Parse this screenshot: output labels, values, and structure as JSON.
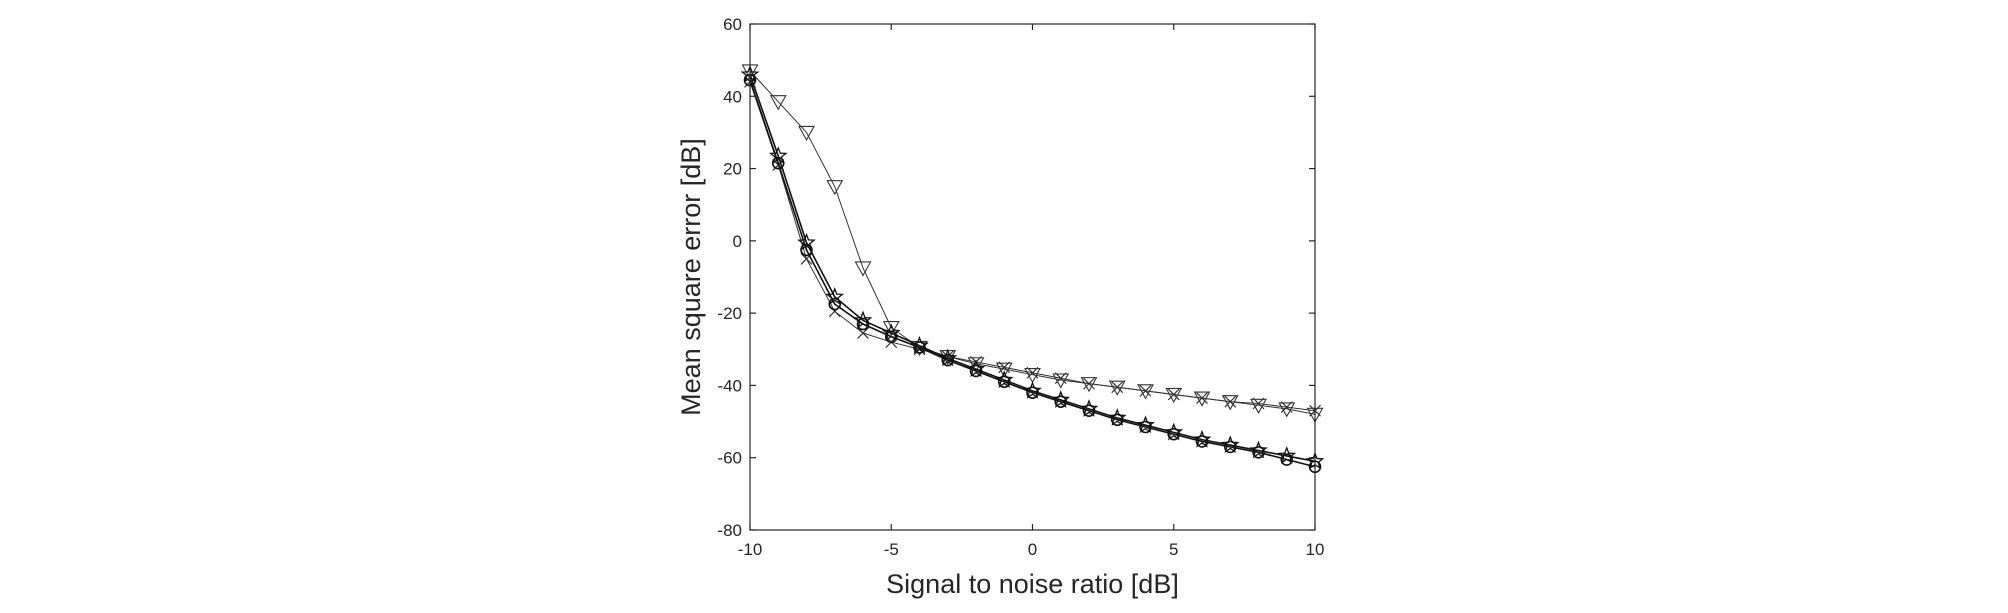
{
  "chart_data": {
    "type": "line",
    "title": "",
    "xlabel": "Signal to noise ratio [dB]",
    "ylabel": "Mean square error [dB]",
    "xlim": [
      -10,
      10
    ],
    "ylim": [
      -80,
      60
    ],
    "xticks": [
      -10,
      -5,
      0,
      5,
      10
    ],
    "yticks": [
      -80,
      -60,
      -40,
      -20,
      0,
      20,
      40,
      60
    ],
    "xtick_labels": [
      "-10",
      "-5",
      "0",
      "5",
      "10"
    ],
    "ytick_labels": [
      "-80",
      "-60",
      "-40",
      "-20",
      "0",
      "20",
      "40",
      "60"
    ],
    "grid": false,
    "x": [
      -10,
      -9,
      -8,
      -7,
      -6,
      -5,
      -4,
      -3,
      -2,
      -1,
      0,
      1,
      2,
      3,
      4,
      5,
      6,
      7,
      8,
      9,
      10
    ],
    "series": [
      {
        "name": "triangle-down",
        "marker": "triangle-down",
        "color": "#333333",
        "values": [
          47,
          38.5,
          30,
          15,
          -7.5,
          -24,
          -29.5,
          -32,
          -34,
          -35.5,
          -37,
          -38.5,
          -39.5,
          -40.5,
          -41.5,
          -42.5,
          -43.5,
          -44.5,
          -45.5,
          -46.5,
          -48
        ]
      },
      {
        "name": "x",
        "marker": "x",
        "color": "#333333",
        "values": [
          44,
          21,
          -5,
          -19.5,
          -25.5,
          -28,
          -30,
          -32,
          -33.5,
          -35,
          -36.5,
          -38,
          -39.5,
          -40.5,
          -41.5,
          -42.5,
          -43.5,
          -44.5,
          -45,
          -46,
          -47
        ]
      },
      {
        "name": "circle",
        "marker": "circle",
        "color": "#111111",
        "values": [
          44.5,
          21.5,
          -2.5,
          -17.5,
          -23,
          -26.5,
          -29.5,
          -33,
          -36,
          -39,
          -42,
          -44.5,
          -47,
          -49.5,
          -51.5,
          -53.5,
          -55.5,
          -57,
          -58.5,
          -60.5,
          -62.5
        ]
      },
      {
        "name": "star",
        "marker": "star",
        "color": "#111111",
        "values": [
          46,
          23.5,
          -0.5,
          -15.5,
          -22,
          -25.5,
          -29,
          -32.5,
          -35.5,
          -38.5,
          -41.5,
          -44,
          -46.5,
          -49,
          -51,
          -53,
          -55,
          -56.5,
          -58,
          -59.5,
          -61
        ]
      }
    ]
  }
}
